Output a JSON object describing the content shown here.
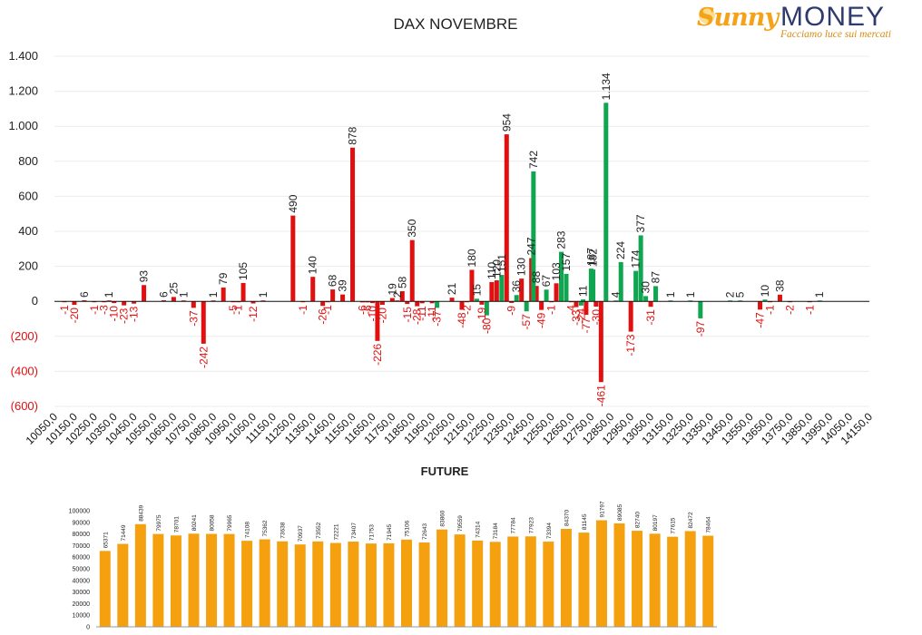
{
  "logo": {
    "brand_left": "Sunny",
    "brand_right": "MONEY",
    "tagline": "Facciamo luce sui mercati"
  },
  "colors": {
    "positive": "#10a651",
    "negative": "#e01010",
    "volume": "#f5a00f"
  },
  "chart_data": [
    {
      "type": "bar",
      "title": "DAX NOVEMBRE",
      "ylim": [
        -600,
        1400
      ],
      "yticks": [
        1400,
        1200,
        1000,
        800,
        600,
        400,
        200,
        0,
        -200,
        -400,
        -600
      ],
      "ytick_labels": [
        "1.400",
        "1.200",
        "1.000",
        "800",
        "600",
        "400",
        "200",
        "0",
        "(200)",
        "(400)",
        "(600)"
      ],
      "xlim": [
        10050,
        14150
      ],
      "xtick_labels": [
        "10050,0",
        "10150,0",
        "10250,0",
        "10350,0",
        "10450,0",
        "10550,0",
        "10650,0",
        "10750,0",
        "10850,0",
        "10950,0",
        "11050,0",
        "11150,0",
        "11250,0",
        "11350,0",
        "11450,0",
        "11550,0",
        "11650,0",
        "11750,0",
        "11850,0",
        "11950,0",
        "12050,0",
        "12150,0",
        "12250,0",
        "12350,0",
        "12450,0",
        "12550,0",
        "12650,0",
        "12750,0",
        "12850,0",
        "12950,0",
        "13050,0",
        "13150,0",
        "13250,0",
        "13350,0",
        "13450,0",
        "13550,0",
        "13650,0",
        "13750,0",
        "13850,0",
        "13950,0",
        "14050,0",
        "14150,0"
      ],
      "grid": true,
      "series": [
        {
          "color": "#e01010",
          "points": [
            {
              "x": 10100,
              "y": -1,
              "label": "-1"
            },
            {
              "x": 10150,
              "y": -20,
              "label": "-20"
            },
            {
              "x": 10200,
              "y": 6,
              "label": "6"
            },
            {
              "x": 10250,
              "y": -1,
              "label": "-1"
            },
            {
              "x": 10300,
              "y": -3,
              "label": "-3"
            },
            {
              "x": 10325,
              "y": 1,
              "label": "1"
            },
            {
              "x": 10350,
              "y": -10,
              "label": "-10"
            },
            {
              "x": 10400,
              "y": -23,
              "label": "-23"
            },
            {
              "x": 10450,
              "y": -13,
              "label": "-13"
            },
            {
              "x": 10500,
              "y": 93,
              "label": "93"
            },
            {
              "x": 10600,
              "y": 6,
              "label": "6"
            },
            {
              "x": 10650,
              "y": 25,
              "label": "25"
            },
            {
              "x": 10700,
              "y": 1,
              "label": "1"
            },
            {
              "x": 10750,
              "y": -37,
              "label": "-37"
            },
            {
              "x": 10800,
              "y": -242,
              "label": "-242"
            },
            {
              "x": 10850,
              "y": 1,
              "label": "1"
            },
            {
              "x": 10900,
              "y": 79,
              "label": "79"
            },
            {
              "x": 10950,
              "y": -5,
              "label": "-5"
            },
            {
              "x": 10975,
              "y": -1,
              "label": "-1"
            },
            {
              "x": 11000,
              "y": 105,
              "label": "105"
            },
            {
              "x": 11050,
              "y": -12,
              "label": "-12"
            },
            {
              "x": 11100,
              "y": 1,
              "label": "1"
            },
            {
              "x": 11250,
              "y": 490,
              "label": "490"
            },
            {
              "x": 11300,
              "y": -1,
              "label": "-1"
            },
            {
              "x": 11350,
              "y": 140,
              "label": "140"
            },
            {
              "x": 11400,
              "y": -26,
              "label": "-26"
            },
            {
              "x": 11425,
              "y": -1,
              "label": "-1"
            },
            {
              "x": 11450,
              "y": 68,
              "label": "68"
            },
            {
              "x": 11500,
              "y": 39,
              "label": "39"
            },
            {
              "x": 11550,
              "y": 878,
              "label": "878"
            },
            {
              "x": 11600,
              "y": -6,
              "label": "-6"
            },
            {
              "x": 11625,
              "y": -6,
              "label": "-6"
            },
            {
              "x": 11650,
              "y": -10,
              "label": "-10"
            },
            {
              "x": 11675,
              "y": -226,
              "label": "-226"
            },
            {
              "x": 11700,
              "y": -20,
              "label": "-20"
            },
            {
              "x": 11750,
              "y": 19,
              "label": "19"
            },
            {
              "x": 11775,
              "y": 2,
              "label": "2"
            },
            {
              "x": 11800,
              "y": 58,
              "label": "58"
            },
            {
              "x": 11825,
              "y": -15,
              "label": "-15"
            },
            {
              "x": 11850,
              "y": 350,
              "label": "350"
            },
            {
              "x": 11875,
              "y": -28,
              "label": "-28"
            },
            {
              "x": 11900,
              "y": -11,
              "label": "-11"
            },
            {
              "x": 11950,
              "y": -11,
              "label": "-11"
            },
            {
              "x": 12050,
              "y": 21,
              "label": "21"
            },
            {
              "x": 12100,
              "y": -48,
              "label": "-48"
            },
            {
              "x": 12125,
              "y": -2,
              "label": "-2"
            },
            {
              "x": 12150,
              "y": 180,
              "label": "180"
            },
            {
              "x": 12200,
              "y": -19,
              "label": "-19"
            },
            {
              "x": 12250,
              "y": 110,
              "label": "110"
            },
            {
              "x": 12275,
              "y": 120,
              "label": "120"
            },
            {
              "x": 12325,
              "y": 954,
              "label": "954"
            },
            {
              "x": 12350,
              "y": -9,
              "label": "-9"
            },
            {
              "x": 12400,
              "y": 130,
              "label": "130"
            },
            {
              "x": 12450,
              "y": 247,
              "label": "247"
            },
            {
              "x": 12475,
              "y": 88,
              "label": "88"
            },
            {
              "x": 12500,
              "y": -49,
              "label": "-49"
            },
            {
              "x": 12550,
              "y": -1,
              "label": "-1"
            },
            {
              "x": 12575,
              "y": 103,
              "label": "103"
            },
            {
              "x": 12650,
              "y": -4,
              "label": "-4"
            },
            {
              "x": 12675,
              "y": -33,
              "label": "-33"
            },
            {
              "x": 12725,
              "y": -77,
              "label": "-77"
            },
            {
              "x": 12775,
              "y": -30,
              "label": "-30"
            },
            {
              "x": 12800,
              "y": -461,
              "label": "-461"
            },
            {
              "x": 12950,
              "y": -173,
              "label": "-173"
            },
            {
              "x": 13050,
              "y": -31,
              "label": "-31"
            },
            {
              "x": 13600,
              "y": -47,
              "label": "-47"
            },
            {
              "x": 13650,
              "y": -1,
              "label": "-1"
            },
            {
              "x": 13700,
              "y": 38,
              "label": "38"
            },
            {
              "x": 13750,
              "y": -2,
              "label": "-2"
            },
            {
              "x": 13850,
              "y": -1,
              "label": "-1"
            }
          ]
        },
        {
          "color": "#10a651",
          "points": [
            {
              "x": 11975,
              "y": -37,
              "label": "-37"
            },
            {
              "x": 12175,
              "y": 15,
              "label": "15"
            },
            {
              "x": 12225,
              "y": -80,
              "label": "-80"
            },
            {
              "x": 12300,
              "y": 151,
              "label": "151"
            },
            {
              "x": 12375,
              "y": 36,
              "label": "36"
            },
            {
              "x": 12425,
              "y": -57,
              "label": "-57"
            },
            {
              "x": 12460,
              "y": 742,
              "label": "742"
            },
            {
              "x": 12525,
              "y": 67,
              "label": "67"
            },
            {
              "x": 12600,
              "y": 283,
              "label": "283"
            },
            {
              "x": 12625,
              "y": 157,
              "label": "157"
            },
            {
              "x": 12700,
              "y": -24,
              "label": "-24"
            },
            {
              "x": 12710,
              "y": 11,
              "label": "11"
            },
            {
              "x": 12750,
              "y": 187,
              "label": "187"
            },
            {
              "x": 12760,
              "y": 182,
              "label": "182"
            },
            {
              "x": 12825,
              "y": 1134,
              "label": "1.134"
            },
            {
              "x": 12875,
              "y": 4,
              "label": "4"
            },
            {
              "x": 12900,
              "y": 224,
              "label": "224"
            },
            {
              "x": 12975,
              "y": 174,
              "label": "174"
            },
            {
              "x": 13000,
              "y": 377,
              "label": "377"
            },
            {
              "x": 13025,
              "y": 30,
              "label": "30"
            },
            {
              "x": 13075,
              "y": 87,
              "label": "87"
            },
            {
              "x": 13150,
              "y": 1,
              "label": "1"
            },
            {
              "x": 13250,
              "y": 1,
              "label": "1"
            },
            {
              "x": 13300,
              "y": -97,
              "label": "-97"
            },
            {
              "x": 13450,
              "y": 2,
              "label": "2"
            },
            {
              "x": 13500,
              "y": 5,
              "label": "5"
            },
            {
              "x": 13625,
              "y": 10,
              "label": "10"
            },
            {
              "x": 13900,
              "y": 1,
              "label": "1"
            }
          ]
        }
      ]
    },
    {
      "type": "bar",
      "title": "FUTURE",
      "ylim": [
        0,
        100000
      ],
      "yticks": [
        100000,
        90000,
        80000,
        70000,
        60000,
        50000,
        40000,
        30000,
        20000,
        10000,
        0
      ],
      "ytick_labels": [
        "100000",
        "90000",
        "80000",
        "70000",
        "60000",
        "50000",
        "40000",
        "30000",
        "20000",
        "10000",
        "0"
      ],
      "color": "#f5a00f",
      "values": [
        65371,
        71449,
        88439,
        79975,
        78701,
        80241,
        80058,
        79965,
        74108,
        75362,
        73638,
        70937,
        73552,
        72221,
        73407,
        71753,
        71945,
        75106,
        72643,
        83860,
        79559,
        74314,
        73184,
        77784,
        77923,
        73394,
        84370,
        81145,
        91797,
        89085,
        82740,
        80197,
        77615,
        82472,
        78464
      ]
    }
  ]
}
